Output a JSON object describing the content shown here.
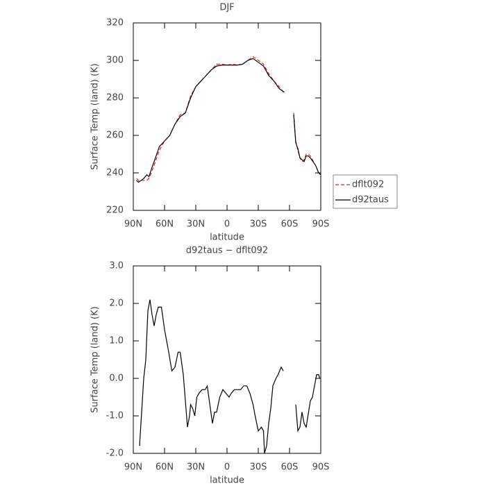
{
  "chart_data": [
    {
      "type": "line",
      "title": "DJF",
      "x_label": "latitude",
      "y_label": "Surface Temp (land) (K)",
      "x": [
        87,
        85,
        80,
        77,
        75,
        72,
        70,
        65,
        60,
        55,
        50,
        45,
        40,
        35,
        30,
        25,
        20,
        15,
        10,
        5,
        0,
        -5,
        -10,
        -15,
        -20,
        -25,
        -30,
        -35,
        -40,
        -45,
        -50,
        -55,
        -60,
        -64,
        -66,
        -68,
        -70,
        -72,
        -74,
        -76,
        -78,
        -80,
        -85,
        -88,
        -90
      ],
      "series": [
        {
          "name": "dflt092",
          "color": "#e0201b",
          "linestyle": "dashed",
          "values": [
            237,
            236,
            236,
            236,
            237,
            241,
            244,
            252,
            257,
            260,
            266,
            271,
            272,
            281,
            286,
            289,
            292,
            295,
            298,
            298,
            297.5,
            298,
            297.5,
            298,
            300,
            302,
            300,
            298,
            293,
            289,
            286,
            282.5,
            null,
            272,
            257,
            252,
            248,
            246,
            247,
            250,
            250,
            249,
            244,
            240,
            239
          ]
        },
        {
          "name": "d92taus",
          "color": "#000000",
          "linestyle": "solid",
          "values": [
            236,
            235,
            237,
            239,
            238,
            243,
            246,
            254,
            257,
            260,
            266,
            270,
            272,
            280,
            286,
            289,
            292,
            295,
            297,
            297.5,
            297.5,
            297.5,
            297.5,
            298,
            300,
            301,
            299,
            297,
            292,
            289,
            285,
            283,
            null,
            271,
            256,
            253,
            248,
            247,
            246,
            249,
            249,
            248,
            244,
            240,
            239
          ]
        }
      ],
      "xlim": [
        90,
        -90
      ],
      "xticks": [
        {
          "value": 90,
          "label": "90N"
        },
        {
          "value": 60,
          "label": "60N"
        },
        {
          "value": 30,
          "label": "30N"
        },
        0,
        {
          "value": -30,
          "label": "30S"
        },
        {
          "value": -60,
          "label": "60S"
        },
        {
          "value": -90,
          "label": "90S"
        }
      ],
      "ylim": [
        220,
        320
      ],
      "yticks": [
        220,
        240,
        260,
        280,
        300,
        320
      ],
      "legend": "right"
    },
    {
      "type": "line",
      "title": "d92taus − dflt092",
      "x_label": "latitude",
      "y_label": "Surface Temp (land) (K)",
      "x": [
        84,
        82,
        80,
        78,
        76,
        74,
        72,
        70,
        68,
        66,
        63,
        60,
        56,
        53,
        50,
        47,
        45,
        42,
        40,
        38,
        36,
        35,
        33,
        31,
        29,
        27,
        24,
        21,
        19,
        17,
        14,
        12,
        10,
        7,
        4,
        1,
        -2,
        -4,
        -7,
        -10,
        -13,
        -16,
        -19,
        -22,
        -25,
        -27,
        -30,
        -33,
        -35,
        -36,
        -38,
        -40,
        -42,
        -44,
        -47,
        -49,
        -52,
        -54,
        -60,
        -66,
        -68,
        -70,
        -72,
        -74,
        -76,
        -80,
        -82,
        -84,
        -86,
        -88,
        -89
      ],
      "series": [
        {
          "name": "d92taus − dflt092",
          "color": "#000000",
          "linestyle": "solid",
          "values": [
            -1.8,
            -0.9,
            0.0,
            0.5,
            1.8,
            2.1,
            1.7,
            1.4,
            1.7,
            1.9,
            1.9,
            1.3,
            0.7,
            0.2,
            0.3,
            0.7,
            0.7,
            0.1,
            -0.6,
            -1.3,
            -1.0,
            -0.7,
            -0.8,
            -1.0,
            -0.5,
            -0.4,
            -0.3,
            -0.3,
            -0.2,
            -0.6,
            -1.2,
            -0.9,
            -0.9,
            -0.5,
            -0.3,
            -0.4,
            -0.5,
            -0.4,
            -0.3,
            -0.3,
            -0.3,
            -0.2,
            -0.2,
            -0.4,
            -0.7,
            -1.0,
            -1.4,
            -1.3,
            -1.4,
            -2.0,
            -1.8,
            -1.2,
            -0.8,
            -0.2,
            0.0,
            0.1,
            0.3,
            0.2,
            null,
            -0.7,
            -1.4,
            -1.3,
            -0.9,
            -1.2,
            -1.3,
            -0.6,
            -0.5,
            -0.2,
            0.1,
            0.1,
            0.0
          ]
        }
      ],
      "xlim": [
        90,
        -90
      ],
      "xticks": [
        {
          "value": 90,
          "label": "90N"
        },
        {
          "value": 60,
          "label": "60N"
        },
        {
          "value": 30,
          "label": "30N"
        },
        0,
        {
          "value": -30,
          "label": "30S"
        },
        {
          "value": -60,
          "label": "60S"
        },
        {
          "value": -90,
          "label": "90S"
        }
      ],
      "ylim": [
        -2,
        3
      ],
      "yticks": [
        {
          "value": -2,
          "label": "-2.0"
        },
        {
          "value": -1,
          "label": "-1.0"
        },
        {
          "value": 0,
          "label": "0.0"
        },
        {
          "value": 1,
          "label": "1.0"
        },
        {
          "value": 2,
          "label": "2.0"
        },
        {
          "value": 3,
          "label": "3.0"
        }
      ]
    }
  ]
}
